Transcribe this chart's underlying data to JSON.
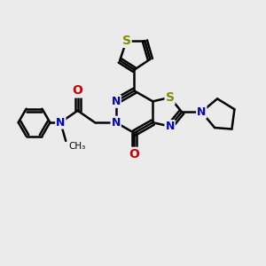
{
  "bg_color": "#ebebeb",
  "bond_color": "#000000",
  "bond_width": 1.8,
  "atom_colors": {
    "S": "#888800",
    "N": "#0000cc",
    "O": "#cc0000",
    "C": "#000000"
  },
  "font_size": 9,
  "fig_size": [
    3.0,
    3.0
  ],
  "dpi": 100
}
